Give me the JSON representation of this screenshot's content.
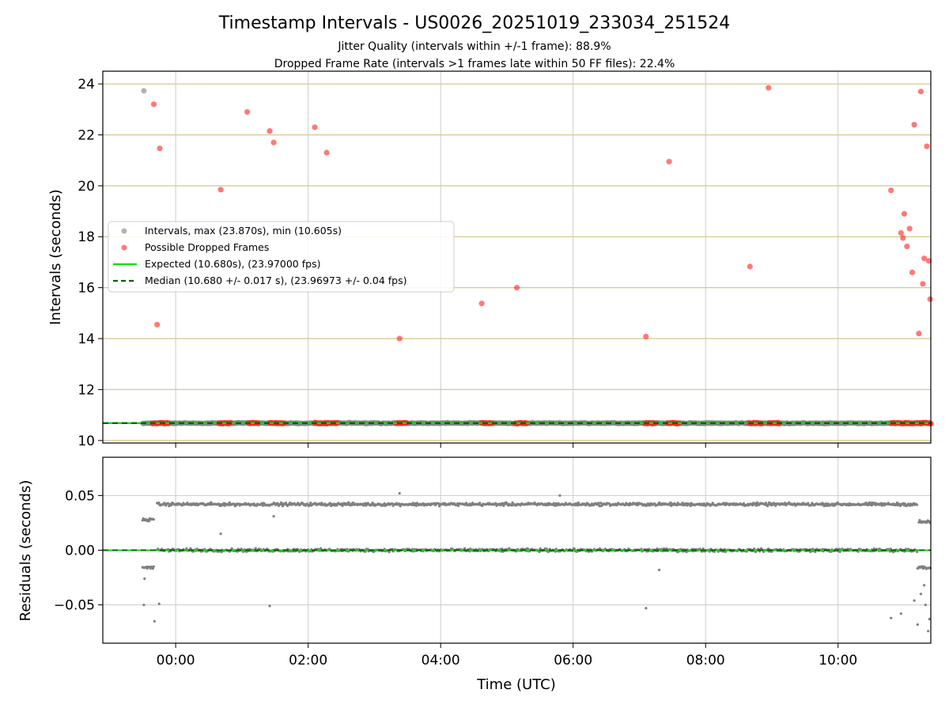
{
  "figure": {
    "title": "Timestamp Intervals - US0026_20251019_233034_251524",
    "subtitle_lines": [
      "Jitter Quality (intervals within +/-1 frame): 88.9%",
      "Dropped Frame Rate (intervals >1 frames late within 50 FF files): 22.4%"
    ]
  },
  "colors": {
    "intervals": "#808080",
    "dropped": "#ff2020",
    "expected": "#00e000",
    "median": "#006400",
    "grid_top": "#d4c78a",
    "grid_bottom": "#cccccc"
  },
  "chart_data": [
    {
      "type": "scatter",
      "panel": "intervals",
      "ylabel": "Intervals (seconds)",
      "xlim_hours": [
        -1.1,
        11.4
      ],
      "ylim": [
        9.9,
        24.5
      ],
      "yticks": [
        10,
        12,
        14,
        16,
        18,
        20,
        22,
        24
      ],
      "ytick_labels": [
        "10",
        "12",
        "14",
        "16",
        "18",
        "20",
        "22",
        "24"
      ],
      "grid": true,
      "legend_position": "center-left",
      "legend": [
        {
          "label": "Intervals, max (23.870s), min (10.605s)",
          "kind": "marker",
          "color": "#808080"
        },
        {
          "label": "Possible Dropped Frames",
          "kind": "marker",
          "color": "#ff2020"
        },
        {
          "label": "Expected (10.680s), (23.97000 fps)",
          "kind": "line",
          "color": "#00e000"
        },
        {
          "label": "Median (10.680 +/- 0.017 s), (23.96973 +/- 0.04 fps)",
          "kind": "dashed",
          "color": "#006400"
        }
      ],
      "expected_value": 10.68,
      "median_value": 10.68,
      "baseline": {
        "x_range": [
          -0.5,
          11.4
        ],
        "y": 10.68,
        "color": "#808080"
      },
      "interval_outliers": [
        {
          "x": -0.48,
          "y": 23.73
        }
      ],
      "dropped_points": [
        {
          "x": -0.33,
          "y": 23.2
        },
        {
          "x": -0.24,
          "y": 21.47
        },
        {
          "x": -0.28,
          "y": 14.55
        },
        {
          "x": 0.68,
          "y": 19.85
        },
        {
          "x": 1.08,
          "y": 22.9
        },
        {
          "x": 1.42,
          "y": 22.15
        },
        {
          "x": 1.48,
          "y": 21.7
        },
        {
          "x": 2.1,
          "y": 22.3
        },
        {
          "x": 2.28,
          "y": 21.3
        },
        {
          "x": 3.38,
          "y": 14.0
        },
        {
          "x": 4.62,
          "y": 15.38
        },
        {
          "x": 5.15,
          "y": 16.0
        },
        {
          "x": 7.1,
          "y": 14.08
        },
        {
          "x": 7.45,
          "y": 20.95
        },
        {
          "x": 8.67,
          "y": 16.83
        },
        {
          "x": 8.95,
          "y": 23.85
        },
        {
          "x": 10.8,
          "y": 19.82
        },
        {
          "x": 10.95,
          "y": 18.15
        },
        {
          "x": 10.98,
          "y": 17.95
        },
        {
          "x": 11.0,
          "y": 18.9
        },
        {
          "x": 11.04,
          "y": 17.62
        },
        {
          "x": 11.08,
          "y": 18.32
        },
        {
          "x": 11.12,
          "y": 16.6
        },
        {
          "x": 11.15,
          "y": 22.4
        },
        {
          "x": 11.22,
          "y": 14.2
        },
        {
          "x": 11.25,
          "y": 23.7
        },
        {
          "x": 11.28,
          "y": 16.15
        },
        {
          "x": 11.3,
          "y": 17.15
        },
        {
          "x": 11.34,
          "y": 21.55
        },
        {
          "x": 11.37,
          "y": 17.05
        },
        {
          "x": 11.39,
          "y": 15.55
        }
      ],
      "dropped_baseline_clusters": [
        {
          "from": -0.35,
          "to": -0.1
        },
        {
          "from": 0.65,
          "to": 0.85
        },
        {
          "from": 1.1,
          "to": 1.25
        },
        {
          "from": 1.42,
          "to": 1.65
        },
        {
          "from": 2.1,
          "to": 2.45
        },
        {
          "from": 3.33,
          "to": 3.5
        },
        {
          "from": 4.62,
          "to": 4.78
        },
        {
          "from": 5.12,
          "to": 5.3
        },
        {
          "from": 7.08,
          "to": 7.25
        },
        {
          "from": 7.42,
          "to": 7.6
        },
        {
          "from": 8.65,
          "to": 8.85
        },
        {
          "from": 8.95,
          "to": 9.12
        },
        {
          "from": 10.8,
          "to": 11.4
        }
      ]
    },
    {
      "type": "scatter",
      "panel": "residuals",
      "xlabel": "Time (UTC)",
      "ylabel": "Residuals (seconds)",
      "xlim_hours": [
        -1.1,
        11.4
      ],
      "ylim": [
        -0.085,
        0.085
      ],
      "xticks_hours": [
        0,
        2,
        4,
        6,
        8,
        10
      ],
      "xtick_labels": [
        "00:00",
        "02:00",
        "04:00",
        "06:00",
        "08:00",
        "10:00"
      ],
      "yticks": [
        0.05,
        0.0,
        -0.05
      ],
      "ytick_labels": [
        "0.05",
        "0.00",
        "−0.05"
      ],
      "grid": true,
      "zero_line": 0.0,
      "bands": [
        {
          "x_range": [
            -0.28,
            11.2
          ],
          "y": 0.042,
          "spread": 0.002
        },
        {
          "x_range": [
            -0.28,
            11.2
          ],
          "y": 0.0,
          "spread": 0.002
        }
      ],
      "edge_clusters": [
        {
          "x_range": [
            -0.5,
            -0.32
          ],
          "y": 0.028,
          "spread": 0.002
        },
        {
          "x_range": [
            -0.5,
            -0.32
          ],
          "y": -0.016,
          "spread": 0.002
        },
        {
          "x_range": [
            11.22,
            11.4
          ],
          "y": 0.026,
          "spread": 0.002
        },
        {
          "x_range": [
            11.2,
            11.4
          ],
          "y": -0.016,
          "spread": 0.002
        }
      ],
      "outlier_points": [
        {
          "x": -0.47,
          "y": -0.026
        },
        {
          "x": -0.48,
          "y": -0.05
        },
        {
          "x": -0.32,
          "y": -0.065
        },
        {
          "x": -0.25,
          "y": -0.049
        },
        {
          "x": 0.68,
          "y": 0.015
        },
        {
          "x": 1.48,
          "y": 0.031
        },
        {
          "x": 1.42,
          "y": -0.051
        },
        {
          "x": 3.38,
          "y": 0.052
        },
        {
          "x": 5.8,
          "y": 0.05
        },
        {
          "x": 7.1,
          "y": -0.053
        },
        {
          "x": 7.3,
          "y": -0.018
        },
        {
          "x": 10.8,
          "y": -0.062
        },
        {
          "x": 10.95,
          "y": -0.058
        },
        {
          "x": 11.15,
          "y": -0.046
        },
        {
          "x": 11.2,
          "y": -0.068
        },
        {
          "x": 11.25,
          "y": -0.04
        },
        {
          "x": 11.3,
          "y": -0.032
        },
        {
          "x": 11.36,
          "y": -0.074
        },
        {
          "x": 11.38,
          "y": -0.063
        },
        {
          "x": 11.32,
          "y": -0.05
        }
      ]
    }
  ]
}
